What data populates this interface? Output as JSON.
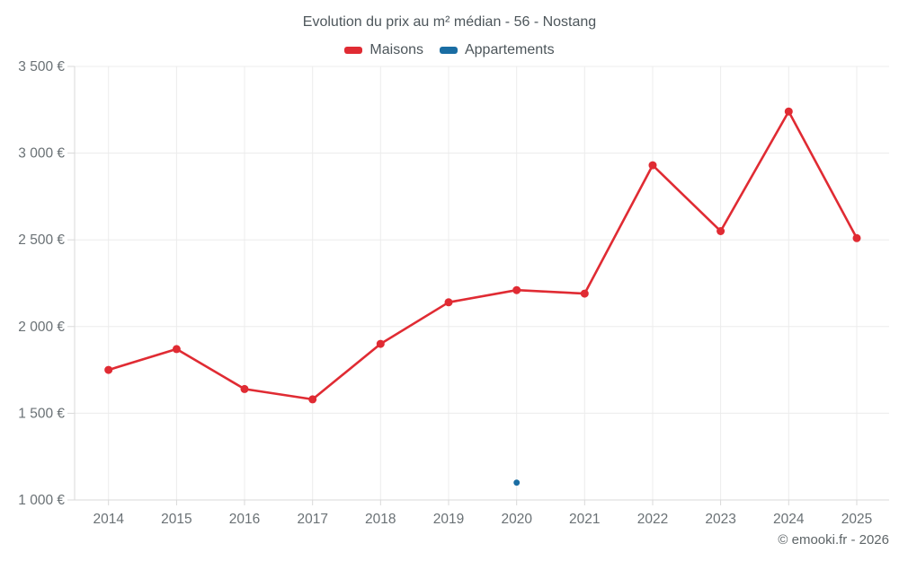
{
  "chart_data": {
    "type": "line",
    "title": "Evolution du prix au m² médian - 56 - Nostang",
    "x": [
      2014,
      2015,
      2016,
      2017,
      2018,
      2019,
      2020,
      2021,
      2022,
      2023,
      2024,
      2025
    ],
    "series": [
      {
        "name": "Maisons",
        "color": "#e02b33",
        "values": [
          1750,
          1870,
          1640,
          1580,
          1900,
          2140,
          2210,
          2190,
          2930,
          2550,
          3240,
          2510
        ]
      },
      {
        "name": "Appartements",
        "color": "#1a6da3",
        "values": [
          null,
          null,
          null,
          null,
          null,
          null,
          1100,
          null,
          null,
          null,
          null,
          null
        ]
      }
    ],
    "xlabel": "",
    "ylabel": "",
    "ylim": [
      1000,
      3500
    ],
    "yticks": [
      1000,
      1500,
      2000,
      2500,
      3000,
      3500
    ],
    "ytick_labels": [
      "1 000 €",
      "1 500 €",
      "2 000 €",
      "2 500 €",
      "3 000 €",
      "3 500 €"
    ],
    "grid": true,
    "legend_position": "top",
    "colors": {
      "grid": "#ececec",
      "axis": "#d9d9d9",
      "tick_label": "#6a7175",
      "title": "#4d565b"
    }
  },
  "footer": {
    "watermark": "© emooki.fr - 2026"
  }
}
